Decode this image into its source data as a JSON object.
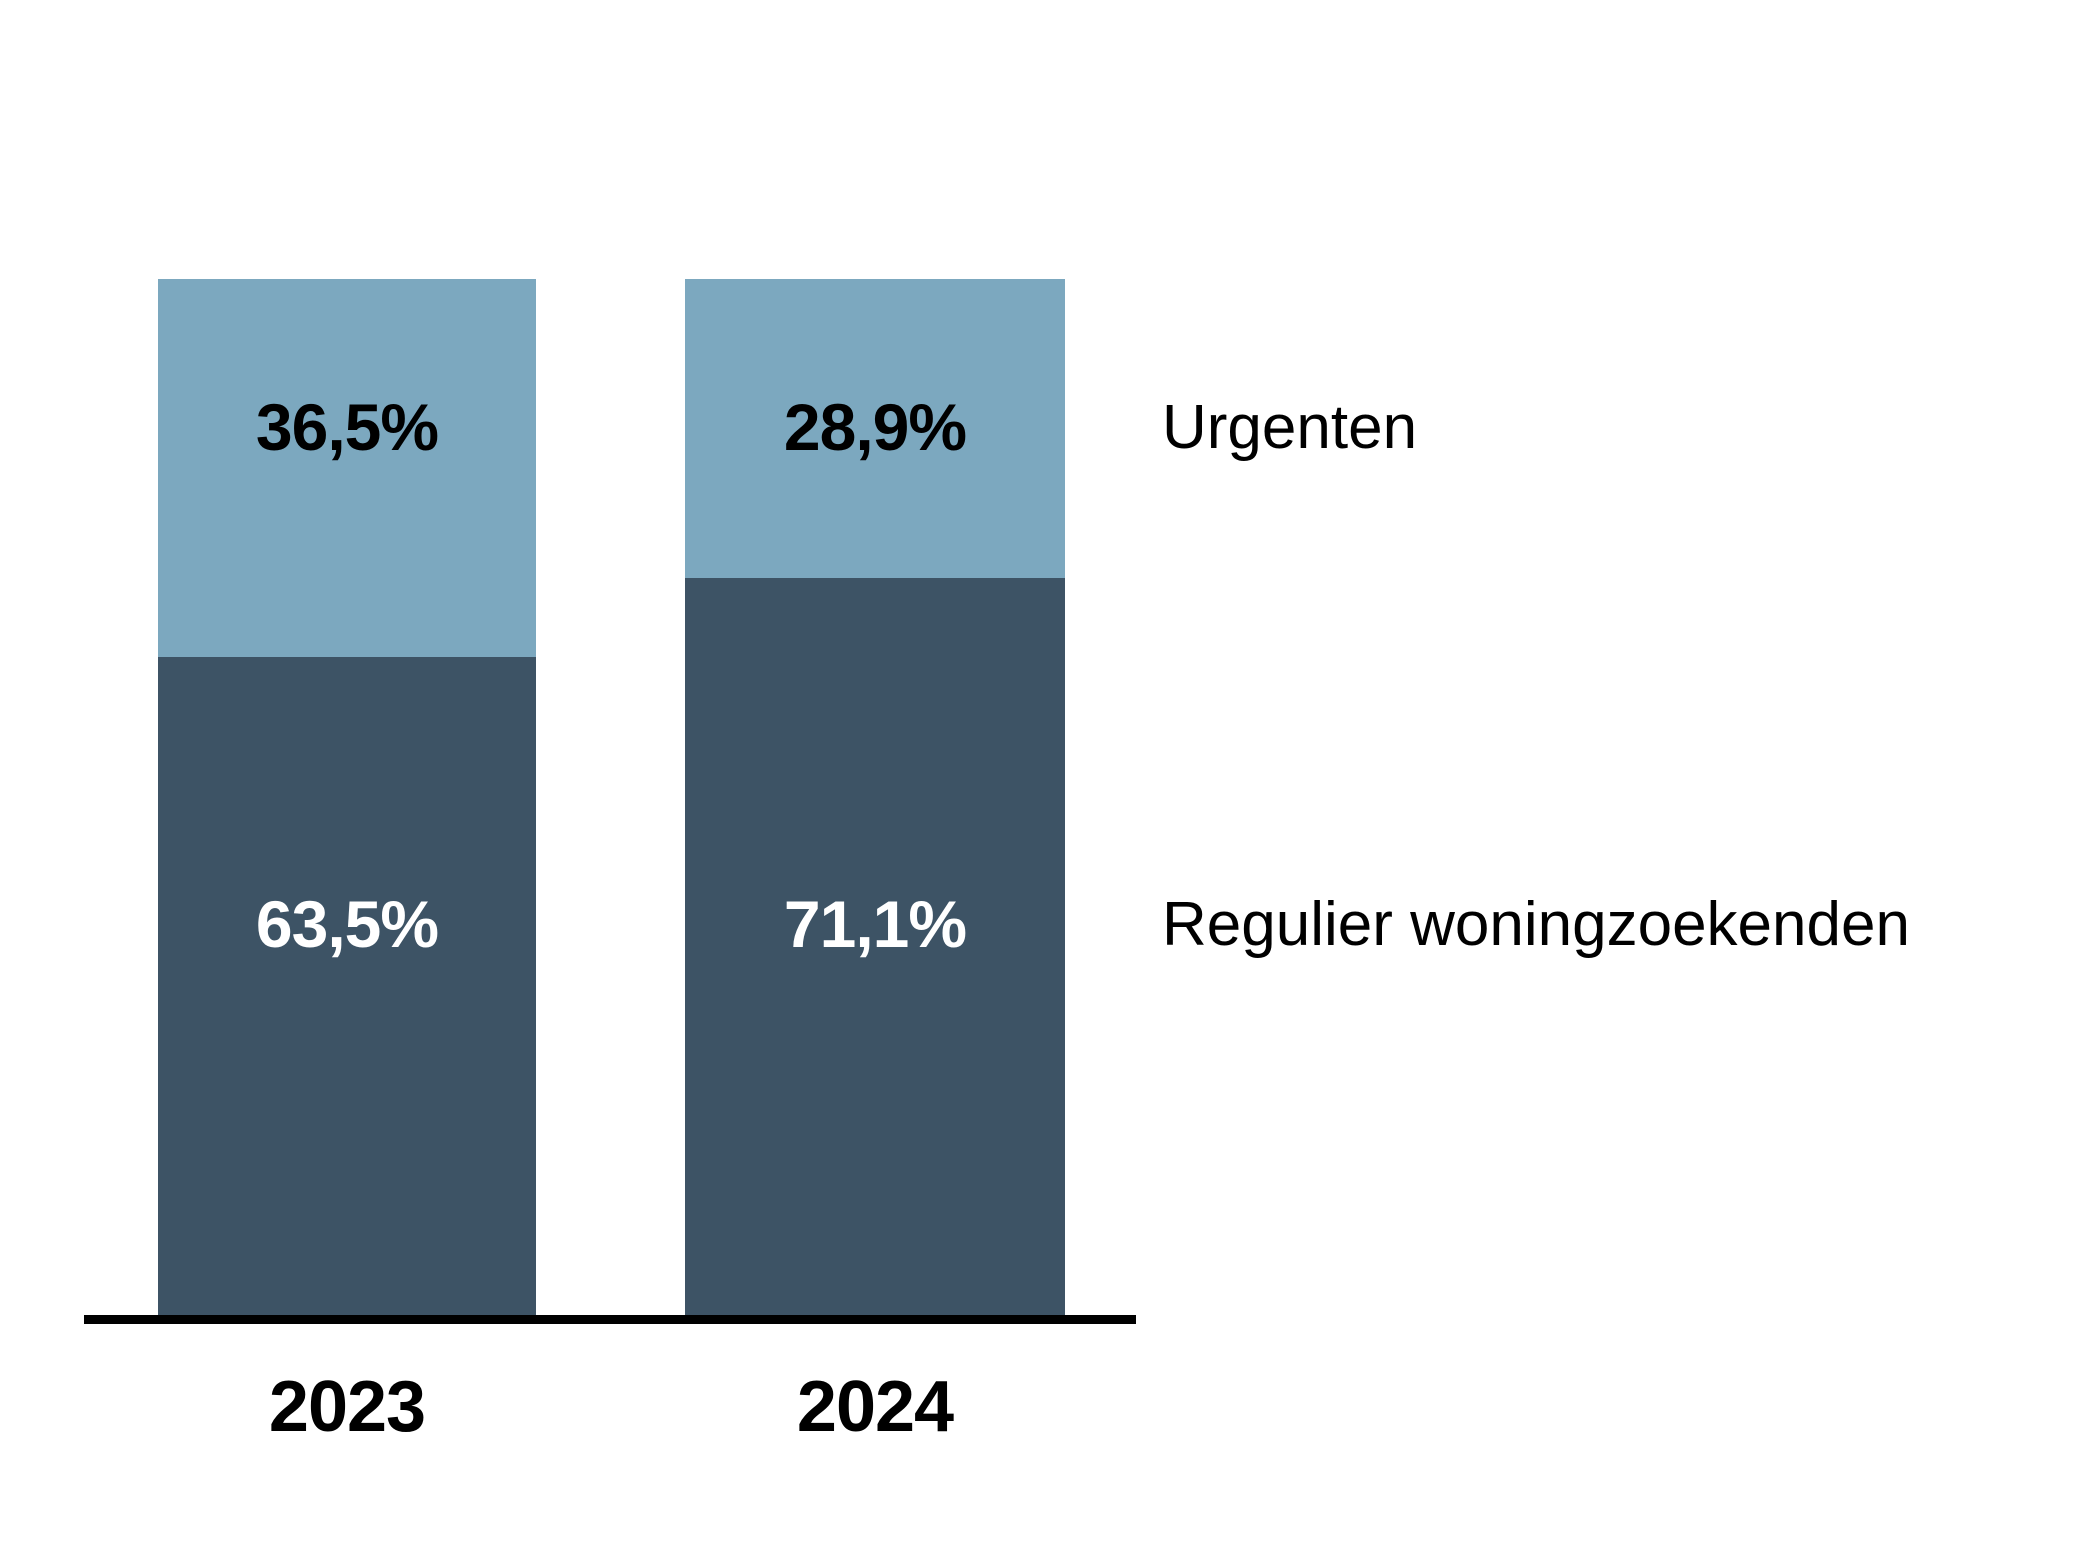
{
  "chart_data": {
    "type": "bar",
    "variant": "stacked-column-100percent",
    "title": "",
    "categories": [
      "2023",
      "2024"
    ],
    "series": [
      {
        "name": "Urgenten",
        "stack_position": "top",
        "color": "#7CA8BF",
        "label_color": "#000000",
        "values": [
          36.5,
          28.9
        ],
        "value_labels": [
          "36,5%",
          "28,9%"
        ]
      },
      {
        "name": "Regulier woningzoekenden",
        "stack_position": "bottom",
        "color": "#3D5365",
        "label_color": "#FFFFFF",
        "values": [
          63.5,
          71.1
        ],
        "value_labels": [
          "63,5%",
          "71,1%"
        ]
      }
    ],
    "legend": {
      "position": "right",
      "items": [
        "Urgenten",
        "Regulier woningzoekenden"
      ]
    },
    "axes": {
      "x": {
        "tick_labels": [
          "2023",
          "2024"
        ],
        "baseline_color": "#000000"
      },
      "y": {
        "visible": false,
        "range": [
          0,
          100
        ]
      }
    },
    "grid": false,
    "background": "#FFFFFF"
  }
}
